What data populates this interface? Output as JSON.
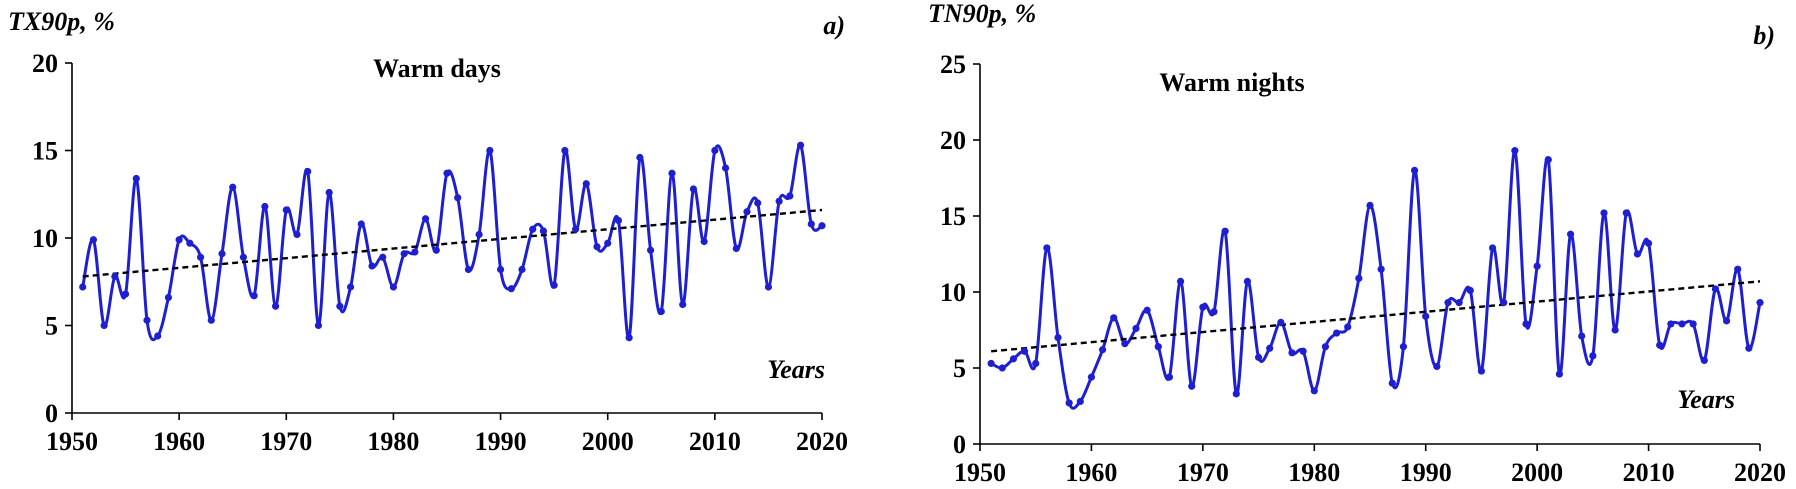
{
  "chart_data": [
    {
      "type": "line",
      "panel_label": "a)",
      "title": "Warm days",
      "ylabel": "TX90p, %",
      "xlabel": "Years",
      "xlim": [
        1950,
        2020
      ],
      "ylim": [
        0,
        20
      ],
      "xticks": [
        1950,
        1960,
        1970,
        1980,
        1990,
        2000,
        2010,
        2020
      ],
      "yticks": [
        0,
        5,
        10,
        15,
        20
      ],
      "color": "#1f1fd2",
      "trend_color": "#000000",
      "grid": false,
      "x": [
        1951,
        1952,
        1953,
        1954,
        1955,
        1956,
        1957,
        1958,
        1959,
        1960,
        1961,
        1962,
        1963,
        1964,
        1965,
        1966,
        1967,
        1968,
        1969,
        1970,
        1971,
        1972,
        1973,
        1974,
        1975,
        1976,
        1977,
        1978,
        1979,
        1980,
        1981,
        1982,
        1983,
        1984,
        1985,
        1986,
        1987,
        1988,
        1989,
        1990,
        1991,
        1992,
        1993,
        1994,
        1995,
        1996,
        1997,
        1998,
        1999,
        2000,
        2001,
        2002,
        2003,
        2004,
        2005,
        2006,
        2007,
        2008,
        2009,
        2010,
        2011,
        2012,
        2013,
        2014,
        2015,
        2016,
        2017,
        2018,
        2019,
        2020
      ],
      "y": [
        7.2,
        9.9,
        5.0,
        7.8,
        6.8,
        13.4,
        5.3,
        4.4,
        6.6,
        9.9,
        9.7,
        8.9,
        5.3,
        9.1,
        12.9,
        8.9,
        6.7,
        11.8,
        6.1,
        11.6,
        10.2,
        13.8,
        5.0,
        12.6,
        6.1,
        7.2,
        10.8,
        8.4,
        8.9,
        7.2,
        9.1,
        9.2,
        11.1,
        9.3,
        13.7,
        12.3,
        8.2,
        10.2,
        15.0,
        8.2,
        7.1,
        8.2,
        10.5,
        10.4,
        7.3,
        15.0,
        10.5,
        13.1,
        9.5,
        9.7,
        11.0,
        4.3,
        14.6,
        9.3,
        5.8,
        13.7,
        6.2,
        12.8,
        9.8,
        15.0,
        14.0,
        9.4,
        11.5,
        12.0,
        7.2,
        12.1,
        12.4,
        15.3,
        10.8,
        10.7
      ],
      "trend": {
        "x": [
          1951,
          2020
        ],
        "y": [
          7.8,
          11.6
        ]
      }
    },
    {
      "type": "line",
      "panel_label": "b)",
      "title": "Warm nights",
      "ylabel": "TN90p, %",
      "xlabel": "Years",
      "xlim": [
        1950,
        2020
      ],
      "ylim": [
        0,
        25
      ],
      "xticks": [
        1950,
        1960,
        1970,
        1980,
        1990,
        2000,
        2010,
        2020
      ],
      "yticks": [
        0,
        5,
        10,
        15,
        20,
        25
      ],
      "color": "#1f1fd2",
      "trend_color": "#000000",
      "grid": false,
      "x": [
        1951,
        1952,
        1953,
        1954,
        1955,
        1956,
        1957,
        1958,
        1959,
        1960,
        1961,
        1962,
        1963,
        1964,
        1965,
        1966,
        1967,
        1968,
        1969,
        1970,
        1971,
        1972,
        1973,
        1974,
        1975,
        1976,
        1977,
        1978,
        1979,
        1980,
        1981,
        1982,
        1983,
        1984,
        1985,
        1986,
        1987,
        1988,
        1989,
        1990,
        1991,
        1992,
        1993,
        1994,
        1995,
        1996,
        1997,
        1998,
        1999,
        2000,
        2001,
        2002,
        2003,
        2004,
        2005,
        2006,
        2007,
        2008,
        2009,
        2010,
        2011,
        2012,
        2013,
        2014,
        2015,
        2016,
        2017,
        2018,
        2019,
        2020
      ],
      "y": [
        5.3,
        5.0,
        5.6,
        6.1,
        5.3,
        12.9,
        7.0,
        2.7,
        2.8,
        4.4,
        6.2,
        8.3,
        6.6,
        7.6,
        8.8,
        6.4,
        4.4,
        10.7,
        3.8,
        9.0,
        8.7,
        14.0,
        3.3,
        10.7,
        5.7,
        6.3,
        8.0,
        6.0,
        6.1,
        3.5,
        6.4,
        7.3,
        7.7,
        10.9,
        15.7,
        11.5,
        4.0,
        6.4,
        18.0,
        8.4,
        5.1,
        9.3,
        9.3,
        10.1,
        4.8,
        12.9,
        9.3,
        19.3,
        7.9,
        11.7,
        18.7,
        4.6,
        13.8,
        7.1,
        5.8,
        15.2,
        7.5,
        15.2,
        12.5,
        13.2,
        6.5,
        7.9,
        7.9,
        7.9,
        5.5,
        10.2,
        8.1,
        11.5,
        6.3,
        9.3
      ],
      "trend": {
        "x": [
          1951,
          2020
        ],
        "y": [
          6.1,
          10.7
        ]
      }
    }
  ]
}
